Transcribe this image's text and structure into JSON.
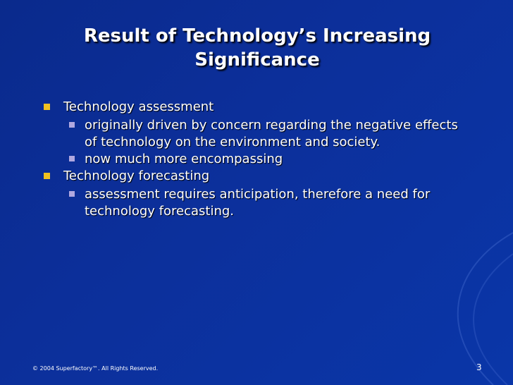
{
  "slide": {
    "title": "Result of Technology’s Increasing Significance",
    "bullets": [
      {
        "text": "Technology assessment",
        "sub": [
          " originally driven by concern regarding the negative effects of technology on the environment and society.",
          "now much more encompassing"
        ]
      },
      {
        "text": "Technology forecasting",
        "sub": [
          "assessment requires anticipation, therefore a need for technology forecasting."
        ]
      }
    ]
  },
  "footer": {
    "copyright": "© 2004 Superfactory™.  All Rights Reserved.",
    "page": "3"
  }
}
